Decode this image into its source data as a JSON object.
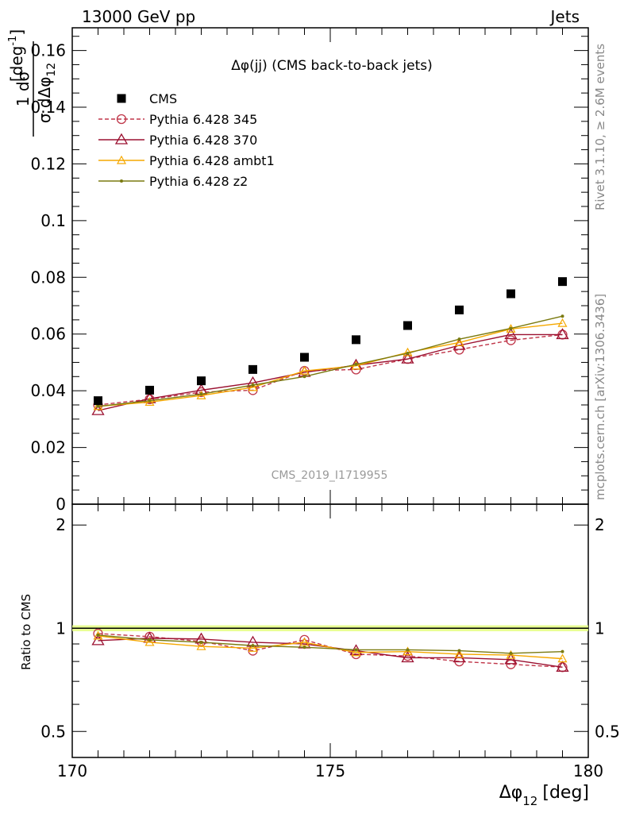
{
  "header": {
    "left": "13000 GeV pp",
    "right": "Jets"
  },
  "chart_data": {
    "type": "line",
    "title": "Δφ(jj) (CMS back-to-back jets)",
    "watermark": "CMS_2019_I1719955",
    "xlabel_main": "Δφ",
    "xlabel_sub": "12",
    "xlabel_unit": "[deg]",
    "ylabel": {
      "num": "1 dσ",
      "den_pre": "σ dΔφ",
      "den_sub": "12",
      "unit": "[deg",
      "unit_sup": "-1",
      "unit_close": "]"
    },
    "ratio_ylabel": "Ratio to CMS",
    "side_text_top": "Rivet 3.1.10, ≥ 2.6M events",
    "side_text_bottom": "mcplots.cern.ch [arXiv:1306.3436]",
    "xlim": [
      170,
      180
    ],
    "ylim": [
      0,
      0.168
    ],
    "ratio_ylim": [
      0.42,
      2.3
    ],
    "x_ticks": [
      "170",
      "175",
      "180"
    ],
    "y_ticks": [
      "0",
      "0.02",
      "0.04",
      "0.06",
      "0.08",
      "0.1",
      "0.12",
      "0.14",
      "0.16"
    ],
    "ratio_ticks": [
      "0.5",
      "1",
      "2"
    ],
    "x": [
      170.5,
      171.5,
      172.5,
      173.5,
      174.5,
      175.5,
      176.5,
      177.5,
      178.5,
      179.5
    ],
    "series": [
      {
        "name": "CMS",
        "color": "#000000",
        "marker": "square",
        "line": "none",
        "values": [
          0.0365,
          0.0402,
          0.0435,
          0.0475,
          0.0518,
          0.058,
          0.063,
          0.0685,
          0.0742,
          0.0785
        ]
      },
      {
        "name": "Pythia 6.428 345",
        "color": "#c0374a",
        "marker": "circle",
        "line": "dashed",
        "values": [
          0.035,
          0.037,
          0.0395,
          0.0402,
          0.047,
          0.0475,
          0.0512,
          0.0545,
          0.0578,
          0.0598
        ]
      },
      {
        "name": "Pythia 6.428 370",
        "color": "#9b1030",
        "marker": "triangle",
        "line": "solid",
        "values": [
          0.033,
          0.0372,
          0.0402,
          0.0428,
          0.0465,
          0.049,
          0.0512,
          0.056,
          0.0598,
          0.0598
        ]
      },
      {
        "name": "Pythia 6.428 ambt1",
        "color": "#f5a800",
        "marker": "triangle-small",
        "line": "solid",
        "values": [
          0.0345,
          0.036,
          0.0383,
          0.0412,
          0.047,
          0.0488,
          0.0535,
          0.057,
          0.0618,
          0.0638
        ]
      },
      {
        "name": "Pythia 6.428 z2",
        "color": "#7a7a10",
        "marker": "dot",
        "line": "solid",
        "values": [
          0.0345,
          0.0365,
          0.0388,
          0.042,
          0.045,
          0.0493,
          0.0532,
          0.0582,
          0.062,
          0.0663
        ]
      }
    ],
    "ratio_series": [
      {
        "name": "Pythia 6.428 345",
        "values": [
          0.965,
          0.945,
          0.915,
          0.86,
          0.925,
          0.84,
          0.83,
          0.8,
          0.785,
          0.77
        ]
      },
      {
        "name": "Pythia 6.428 370",
        "values": [
          0.92,
          0.935,
          0.93,
          0.91,
          0.9,
          0.86,
          0.82,
          0.82,
          0.81,
          0.77
        ]
      },
      {
        "name": "Pythia 6.428 ambt1",
        "values": [
          0.95,
          0.91,
          0.885,
          0.875,
          0.91,
          0.85,
          0.855,
          0.84,
          0.835,
          0.815
        ]
      },
      {
        "name": "Pythia 6.428 z2",
        "values": [
          0.955,
          0.925,
          0.91,
          0.89,
          0.88,
          0.865,
          0.865,
          0.86,
          0.845,
          0.855
        ]
      }
    ]
  }
}
